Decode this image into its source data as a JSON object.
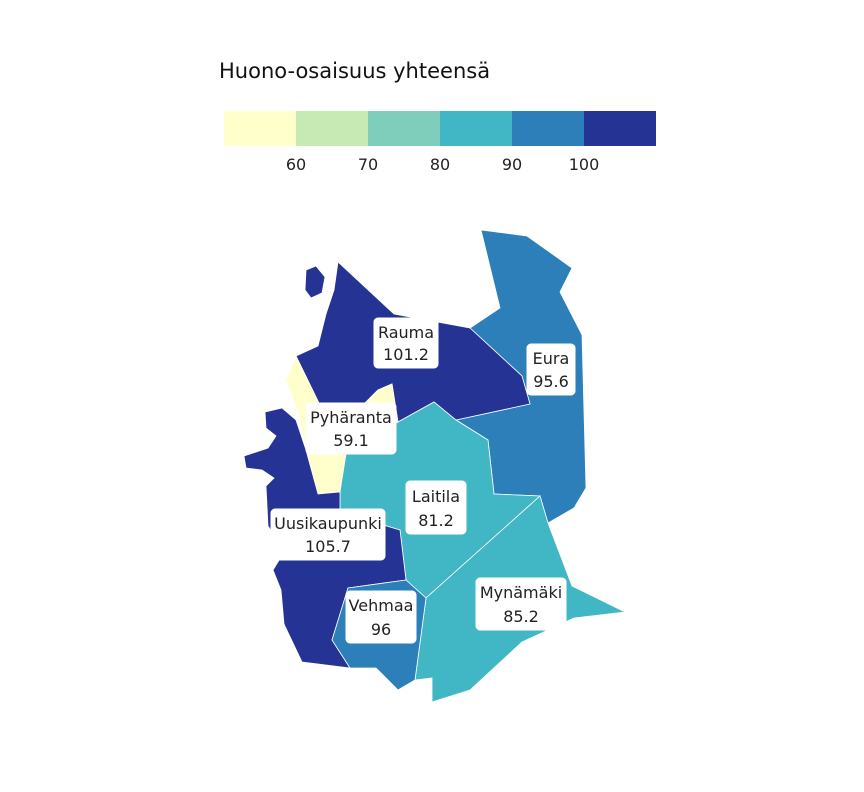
{
  "legend": {
    "title": "Huono-osaisuus yhteensä",
    "colors": [
      "#ffffcc",
      "#c7e9b4",
      "#7fcdbb",
      "#41b6c4",
      "#2c7fb8",
      "#253494"
    ],
    "ticks": [
      "60",
      "70",
      "80",
      "90",
      "100"
    ]
  },
  "regions": [
    {
      "name": "Rauma",
      "value": "101.2",
      "color": "#253494"
    },
    {
      "name": "Eura",
      "value": "95.6",
      "color": "#2c7fb8"
    },
    {
      "name": "Pyhäranta",
      "value": "59.1",
      "color": "#ffffcc"
    },
    {
      "name": "Laitila",
      "value": "81.2",
      "color": "#41b6c4"
    },
    {
      "name": "Uusikaupunki",
      "value": "105.7",
      "color": "#253494"
    },
    {
      "name": "Vehmaa",
      "value": "96",
      "color": "#2c7fb8"
    },
    {
      "name": "Mynämäki",
      "value": "85.2",
      "color": "#41b6c4"
    }
  ]
}
